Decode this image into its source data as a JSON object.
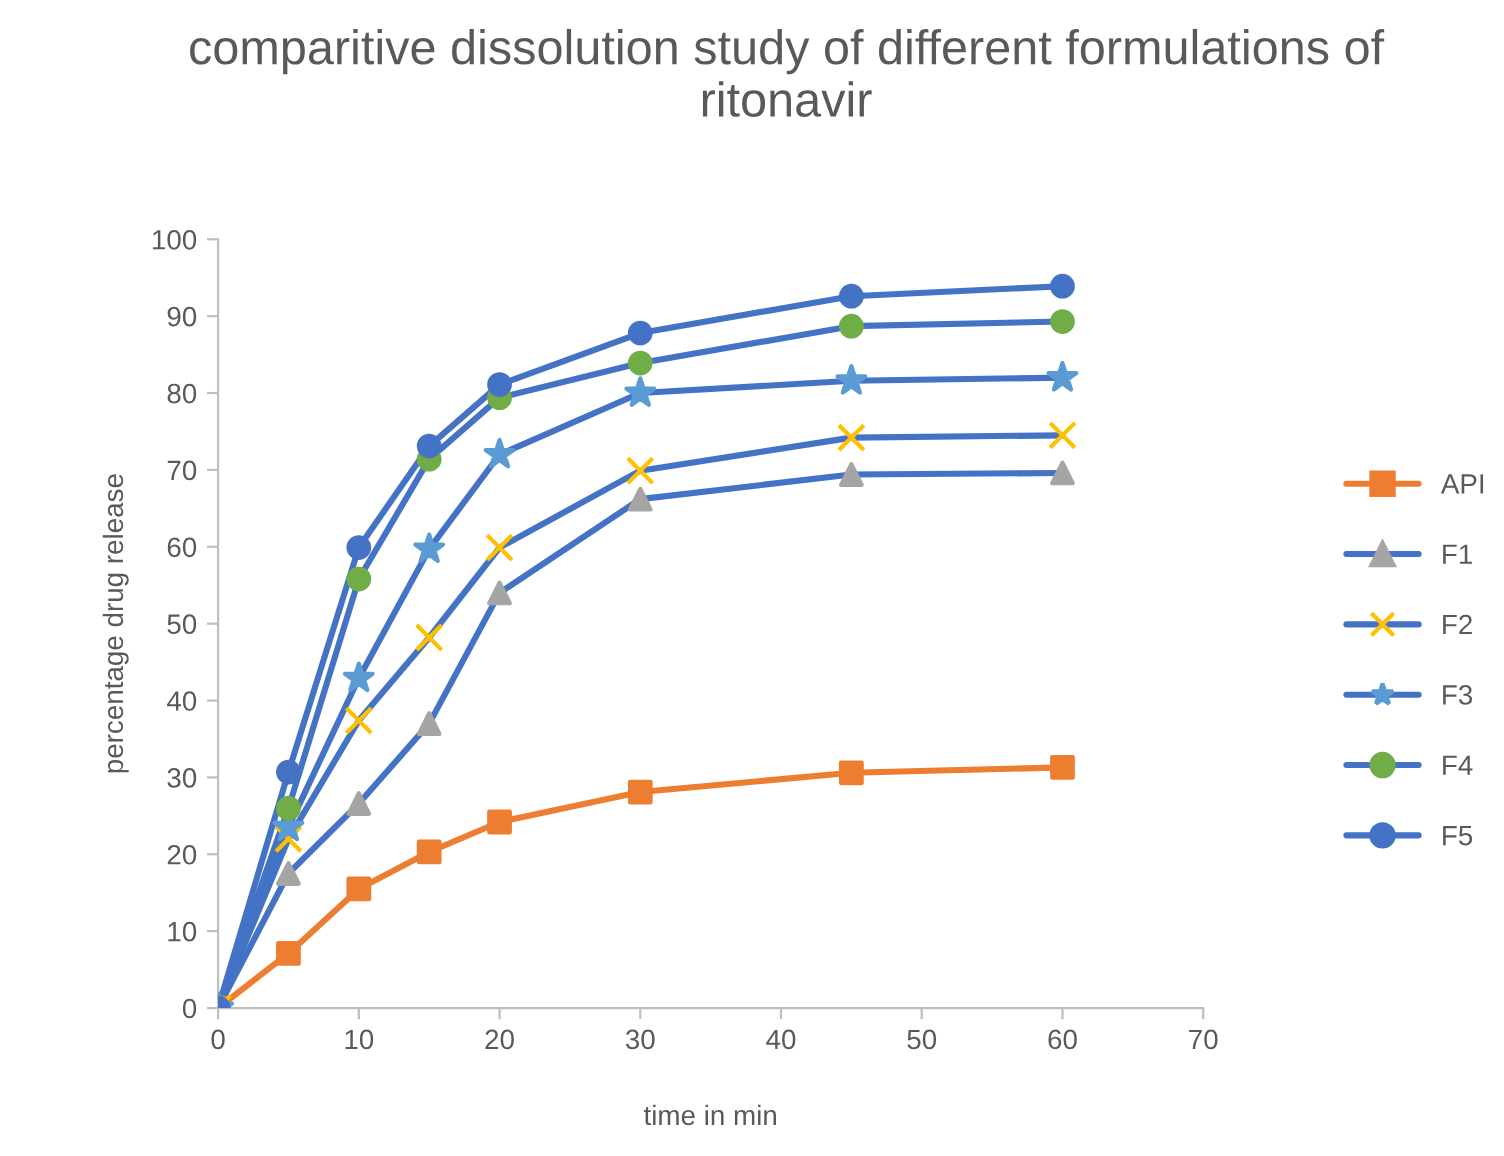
{
  "chart_data": {
    "type": "line",
    "title": "comparitive dissolution study of different formulations of ritonavir",
    "xlabel": "time in min",
    "ylabel": "percentage drug release",
    "x": [
      0,
      5,
      10,
      15,
      20,
      30,
      45,
      60
    ],
    "series": [
      {
        "name": "API",
        "color": "#ed7d31",
        "colors": [
          "#ed7d31",
          "#ed7d31",
          "#ed7d31",
          "#ed7d31",
          "#ed7d31",
          "#ed7d31",
          "#ed7d31",
          "#ed7d31"
        ],
        "marker": "square",
        "values": [
          0,
          7.1,
          15.5,
          20.3,
          24.2,
          28.1,
          30.6,
          31.3
        ]
      },
      {
        "name": "F1",
        "color": "#4472c4",
        "colors": [
          "#a5a5a5",
          "#a5a5a5",
          "#a5a5a5",
          "#a5a5a5",
          "#a5a5a5",
          "#a5a5a5",
          "#a5a5a5",
          "#a5a5a5"
        ],
        "marker": "triangle",
        "values": [
          0,
          17.5,
          26.6,
          37,
          54,
          66.2,
          69.4,
          69.6
        ]
      },
      {
        "name": "F2",
        "color": "#4472c4",
        "colors": [
          "#ffc000",
          "#ffc000",
          "#ffc000",
          "#ffc000",
          "#ffc000",
          "#ffc000",
          "#ffc000",
          "#ffc000"
        ],
        "marker": "cross",
        "values": [
          0,
          22,
          37.4,
          48.2,
          59.9,
          69.9,
          74.2,
          74.5
        ]
      },
      {
        "name": "F3",
        "color": "#4472c4",
        "colors": [
          "#5b9bd5",
          "#5b9bd5",
          "#5b9bd5",
          "#5b9bd5",
          "#5b9bd5",
          "#5b9bd5",
          "#5b9bd5",
          "#5b9bd5"
        ],
        "marker": "star",
        "values": [
          0,
          23.5,
          42.9,
          59.7,
          72,
          80,
          81.6,
          82
        ]
      },
      {
        "name": "F4",
        "color": "#4472c4",
        "colors": [
          "#70ad47",
          "#70ad47",
          "#70ad47",
          "#70ad47",
          "#70ad47",
          "#70ad47",
          "#70ad47",
          "#70ad47"
        ],
        "marker": "circle",
        "values": [
          0,
          26,
          55.8,
          71.4,
          79.4,
          83.9,
          88.7,
          89.3
        ]
      },
      {
        "name": "F5",
        "color": "#4472c4",
        "colors": [
          "#4472c4",
          "#4472c4",
          "#4472c4",
          "#4472c4",
          "#4472c4",
          "#4472c4",
          "#4472c4",
          "#4472c4"
        ],
        "marker": "circle",
        "values": [
          0,
          30.7,
          59.9,
          73.1,
          81.1,
          87.8,
          92.6,
          93.9
        ]
      }
    ],
    "xlim": [
      0,
      70
    ],
    "xticks": [
      0,
      10,
      20,
      30,
      40,
      50,
      60,
      70
    ],
    "ylim": [
      0,
      100
    ],
    "yticks": [
      0,
      10,
      20,
      30,
      40,
      50,
      60,
      70,
      80,
      90,
      100
    ],
    "grid": false,
    "legend": "right",
    "line_style": "solid"
  }
}
